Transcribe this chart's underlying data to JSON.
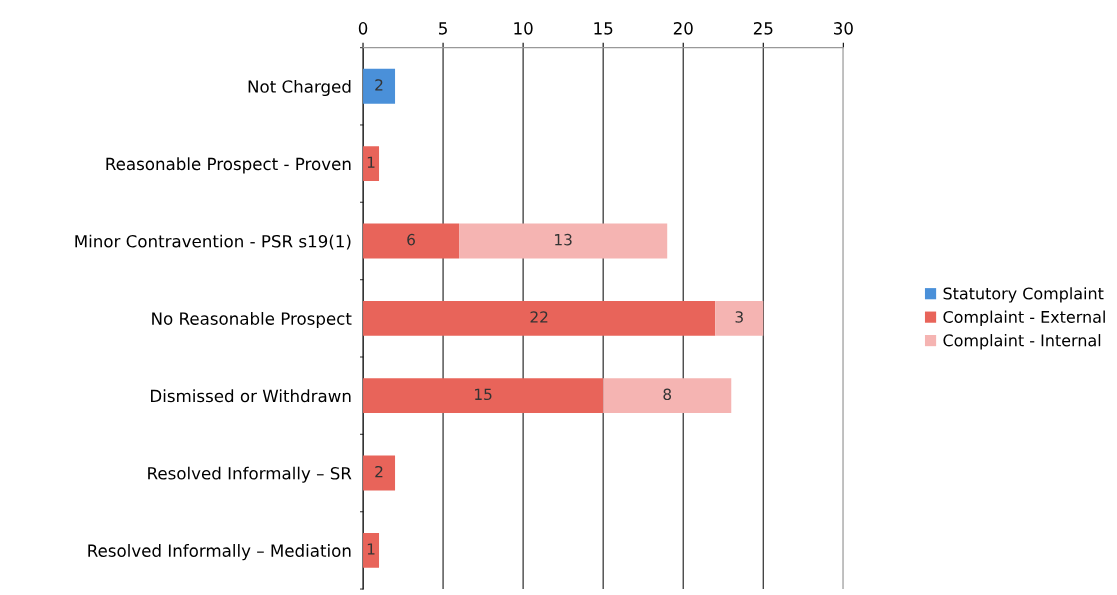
{
  "chart_data": {
    "type": "bar",
    "orientation": "horizontal",
    "stacked": true,
    "categories": [
      "Not Charged",
      "Reasonable Prospect - Proven",
      "Minor Contravention - PSR s19(1)",
      "No Reasonable Prospect",
      "Dismissed or Withdrawn",
      "Resolved Informally – SR",
      "Resolved Informally – Mediation"
    ],
    "series": [
      {
        "name": "Statutory Complaint",
        "color": "#4a90d9",
        "values": [
          2,
          null,
          null,
          null,
          null,
          null,
          null
        ]
      },
      {
        "name": "Complaint - External",
        "color": "#e8645a",
        "values": [
          null,
          1,
          6,
          22,
          15,
          2,
          1
        ]
      },
      {
        "name": "Complaint - Internal",
        "color": "#f5b4b2",
        "values": [
          null,
          null,
          13,
          3,
          8,
          null,
          null
        ]
      }
    ],
    "xlim": [
      0,
      30
    ],
    "xticks": [
      0,
      5,
      10,
      15,
      20,
      25,
      30
    ],
    "grid": "x",
    "legend": "right",
    "data_labels": true
  }
}
